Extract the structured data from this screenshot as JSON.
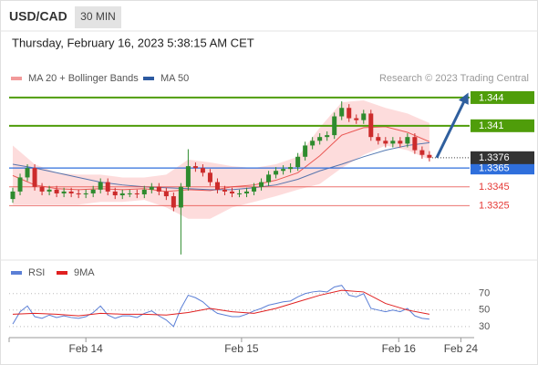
{
  "header": {
    "symbol": "USD/CAD",
    "interval": "30 MIN",
    "timestamp": "Thursday, February 16, 2023 5:38:15 AM CET"
  },
  "chart_data": [
    {
      "type": "candlestick",
      "source": "Research © 2023 Trading Central",
      "xlim": [
        -0.5,
        62.5
      ],
      "ylim": [
        1.3269,
        1.3505
      ],
      "up_color": "#2e8b2e",
      "down_color": "#cc2b2b",
      "open": [
        1.3332,
        1.334,
        1.3355,
        1.3365,
        1.3345,
        1.334,
        1.3342,
        1.3338,
        1.334,
        1.3338,
        1.3337,
        1.3338,
        1.3342,
        1.335,
        1.334,
        1.3336,
        1.3338,
        1.3338,
        1.3337,
        1.3342,
        1.3345,
        1.334,
        1.3335,
        1.3323,
        1.3345,
        1.3367,
        1.3365,
        1.336,
        1.335,
        1.3342,
        1.334,
        1.3338,
        1.3338,
        1.334,
        1.3345,
        1.335,
        1.3358,
        1.3362,
        1.3364,
        1.3366,
        1.3377,
        1.3389,
        1.3394,
        1.3398,
        1.34,
        1.342,
        1.3429,
        1.3418,
        1.3416,
        1.3423,
        1.3398,
        1.3394,
        1.3391,
        1.3394,
        1.3391,
        1.3398,
        1.3384,
        1.3379
      ],
      "high": [
        1.3344,
        1.3359,
        1.3369,
        1.3369,
        1.3349,
        1.3346,
        1.3346,
        1.3344,
        1.3344,
        1.3342,
        1.3342,
        1.3346,
        1.3354,
        1.3354,
        1.3344,
        1.3342,
        1.3342,
        1.3342,
        1.3346,
        1.3349,
        1.3349,
        1.3344,
        1.3339,
        1.3349,
        1.3385,
        1.3371,
        1.3369,
        1.3364,
        1.3354,
        1.3346,
        1.3344,
        1.3342,
        1.3344,
        1.3349,
        1.3354,
        1.3362,
        1.3366,
        1.3368,
        1.337,
        1.3381,
        1.3393,
        1.3398,
        1.3402,
        1.3404,
        1.3424,
        1.3436,
        1.3433,
        1.3422,
        1.3427,
        1.3427,
        1.3402,
        1.3398,
        1.3398,
        1.3398,
        1.3402,
        1.3402,
        1.3388,
        1.3383
      ],
      "low": [
        1.3328,
        1.3336,
        1.3351,
        1.3341,
        1.3336,
        1.3336,
        1.3334,
        1.3334,
        1.3334,
        1.3333,
        1.3333,
        1.3334,
        1.3338,
        1.3336,
        1.3332,
        1.3332,
        1.3334,
        1.3333,
        1.3333,
        1.3338,
        1.3336,
        1.3331,
        1.3319,
        1.3273,
        1.3341,
        1.3361,
        1.3356,
        1.3346,
        1.3338,
        1.3336,
        1.3334,
        1.3334,
        1.3334,
        1.3336,
        1.3341,
        1.3346,
        1.3354,
        1.3358,
        1.336,
        1.3362,
        1.3373,
        1.3385,
        1.339,
        1.3394,
        1.3396,
        1.3416,
        1.3414,
        1.3412,
        1.3412,
        1.3394,
        1.339,
        1.3387,
        1.3387,
        1.3387,
        1.3387,
        1.338,
        1.3375,
        1.3372
      ],
      "close": [
        1.334,
        1.3355,
        1.3365,
        1.3345,
        1.334,
        1.3342,
        1.3338,
        1.334,
        1.3338,
        1.3337,
        1.3338,
        1.3342,
        1.335,
        1.334,
        1.3336,
        1.3338,
        1.3338,
        1.3337,
        1.3342,
        1.3345,
        1.334,
        1.3335,
        1.3323,
        1.3345,
        1.3367,
        1.3365,
        1.336,
        1.335,
        1.3342,
        1.334,
        1.3338,
        1.3338,
        1.334,
        1.3345,
        1.335,
        1.3358,
        1.3362,
        1.3364,
        1.3366,
        1.3377,
        1.3389,
        1.3394,
        1.3398,
        1.34,
        1.342,
        1.3429,
        1.3418,
        1.3416,
        1.3423,
        1.3398,
        1.3394,
        1.3391,
        1.3394,
        1.3391,
        1.3398,
        1.3384,
        1.3379,
        1.3376
      ],
      "series": [
        {
          "name": "MA 20 + Bollinger Bands",
          "color": "#e53935",
          "band_color": "#fdd6d6",
          "x": [
            0,
            3,
            6,
            9,
            12,
            15,
            18,
            21,
            24,
            27,
            30,
            33,
            36,
            39,
            42,
            45,
            48,
            51,
            54,
            57
          ],
          "values": [
            1.3357,
            1.3347,
            1.3343,
            1.3342,
            1.3343,
            1.3342,
            1.3343,
            1.334,
            1.3342,
            1.3341,
            1.3345,
            1.3347,
            1.3352,
            1.336,
            1.3378,
            1.34,
            1.3408,
            1.3409,
            1.3403,
            1.3393
          ],
          "upper": [
            1.3389,
            1.3369,
            1.336,
            1.3358,
            1.3358,
            1.3355,
            1.3355,
            1.3358,
            1.3374,
            1.3371,
            1.3367,
            1.3365,
            1.3369,
            1.3377,
            1.3408,
            1.3435,
            1.3437,
            1.3429,
            1.3423,
            1.3413
          ],
          "lower": [
            1.3326,
            1.3326,
            1.3326,
            1.3326,
            1.3329,
            1.3329,
            1.3331,
            1.3323,
            1.3311,
            1.3311,
            1.3323,
            1.3329,
            1.3335,
            1.3342,
            1.3348,
            1.3365,
            1.3379,
            1.3389,
            1.3384,
            1.3374
          ]
        },
        {
          "name": "MA 50",
          "color": "#2d5aa0",
          "x": [
            0,
            3,
            6,
            9,
            12,
            15,
            18,
            21,
            24,
            27,
            30,
            33,
            36,
            39,
            42,
            45,
            48,
            51,
            54,
            57
          ],
          "values": [
            1.3369,
            1.3365,
            1.336,
            1.3355,
            1.335,
            1.3347,
            1.3345,
            1.3344,
            1.3343,
            1.3342,
            1.3342,
            1.3344,
            1.3347,
            1.3353,
            1.3362,
            1.3369,
            1.3377,
            1.3384,
            1.3389,
            1.3392
          ]
        }
      ],
      "levels": [
        {
          "value": 1.344,
          "label": "1.3440",
          "color": "#4f9d0a",
          "boxed": true
        },
        {
          "value": 1.341,
          "label": "1.3410",
          "color": "#4f9d0a",
          "boxed": true
        },
        {
          "value": 1.3365,
          "color": "#2f6fdc",
          "boxed": true
        },
        {
          "value": 1.3345,
          "color": "#e53935",
          "boxed": false
        },
        {
          "value": 1.3325,
          "color": "#e53935",
          "boxed": false
        }
      ],
      "last_price": {
        "value": 1.3376,
        "color": "#333333"
      },
      "forecast": {
        "x": [
          58,
          62
        ],
        "values": [
          1.3376,
          1.344
        ],
        "color": "#2f5f9e"
      }
    },
    {
      "type": "line",
      "xlim": [
        -0.5,
        62.5
      ],
      "ylim": [
        21,
        83
      ],
      "yticks": [
        30,
        50,
        70
      ],
      "grid": true,
      "xticks": [
        {
          "value": 10,
          "label": "Feb 14"
        },
        {
          "value": 31.3,
          "label": "Feb 15"
        },
        {
          "value": 52.8,
          "label": "Feb 16"
        },
        {
          "value": 61.3,
          "label": "Feb 24"
        }
      ],
      "series": [
        {
          "name": "RSI",
          "color": "#5b7fd6",
          "values": [
            33,
            48,
            55,
            42,
            40,
            44,
            41,
            43,
            41,
            40,
            42,
            47,
            55,
            44,
            40,
            43,
            43,
            41,
            46,
            49,
            43,
            38,
            30,
            52,
            68,
            65,
            60,
            52,
            46,
            44,
            42,
            42,
            45,
            49,
            52,
            56,
            58,
            60,
            61,
            66,
            70,
            72,
            73,
            72,
            78,
            80,
            68,
            66,
            70,
            52,
            50,
            48,
            50,
            48,
            52,
            43,
            40,
            39
          ]
        },
        {
          "name": "9MA",
          "color": "#e02020",
          "x": [
            0,
            3,
            6,
            9,
            12,
            15,
            18,
            21,
            24,
            27,
            30,
            33,
            36,
            39,
            42,
            45,
            48,
            51,
            54,
            57
          ],
          "values": [
            45,
            46,
            45,
            43,
            46,
            45,
            45,
            44,
            47,
            52,
            48,
            46,
            52,
            60,
            68,
            74,
            72,
            58,
            50,
            45
          ]
        }
      ]
    }
  ]
}
